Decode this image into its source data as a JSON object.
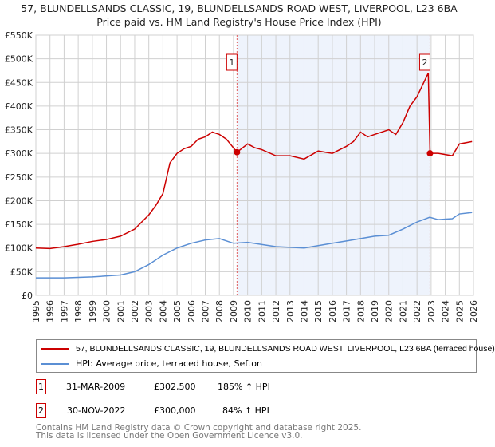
{
  "title": "57, BLUNDELLSANDS CLASSIC, 19, BLUNDELLSANDS ROAD WEST, LIVERPOOL, L23 6BA",
  "subtitle": "Price paid vs. HM Land Registry's House Price Index (HPI)",
  "chart_data": {
    "type": "line",
    "title": "57, BLUNDELLSANDS CLASSIC, 19, BLUNDELLSANDS ROAD WEST, LIVERPOOL, L23 6BA",
    "subtitle": "Price paid vs. HM Land Registry's House Price Index (HPI)",
    "xlim": [
      1995,
      2026
    ],
    "ylim": [
      0,
      550000
    ],
    "grid": true,
    "x_ticks": [
      "1995",
      "1996",
      "1997",
      "1998",
      "1999",
      "2000",
      "2001",
      "2002",
      "2003",
      "2004",
      "2005",
      "2006",
      "2007",
      "2008",
      "2009",
      "2010",
      "2011",
      "2012",
      "2013",
      "2014",
      "2015",
      "2016",
      "2017",
      "2018",
      "2019",
      "2020",
      "2021",
      "2022",
      "2023",
      "2024",
      "2025",
      "2026"
    ],
    "y_ticks": [
      {
        "v": 0,
        "l": "£0"
      },
      {
        "v": 50000,
        "l": "£50K"
      },
      {
        "v": 100000,
        "l": "£100K"
      },
      {
        "v": 150000,
        "l": "£150K"
      },
      {
        "v": 200000,
        "l": "£200K"
      },
      {
        "v": 250000,
        "l": "£250K"
      },
      {
        "v": 300000,
        "l": "£300K"
      },
      {
        "v": 350000,
        "l": "£350K"
      },
      {
        "v": 400000,
        "l": "£400K"
      },
      {
        "v": 450000,
        "l": "£450K"
      },
      {
        "v": 500000,
        "l": "£500K"
      },
      {
        "v": 550000,
        "l": "£550K"
      }
    ],
    "shaded_range": [
      2009.25,
      2022.92
    ],
    "series": [
      {
        "name": "57, BLUNDELLSANDS CLASSIC, 19, BLUNDELLSANDS ROAD WEST, LIVERPOOL, L23 6BA (terraced house)",
        "color": "#cc0000",
        "x": [
          1995,
          1996,
          1997,
          1998,
          1999,
          2000,
          2001,
          2002,
          2003,
          2003.5,
          2004,
          2004.5,
          2005,
          2005.5,
          2006,
          2006.5,
          2007,
          2007.5,
          2008,
          2008.5,
          2009.25,
          2010,
          2010.5,
          2011,
          2012,
          2013,
          2014,
          2015,
          2016,
          2017,
          2017.5,
          2018,
          2018.5,
          2019,
          2020,
          2020.5,
          2021,
          2021.5,
          2022,
          2022.8,
          2022.92,
          2023.5,
          2024.5,
          2025,
          2025.9
        ],
        "y": [
          100000,
          99000,
          103000,
          108000,
          114000,
          118000,
          125000,
          140000,
          170000,
          190000,
          215000,
          280000,
          300000,
          310000,
          315000,
          330000,
          335000,
          345000,
          340000,
          330000,
          302500,
          320000,
          312000,
          308000,
          295000,
          295000,
          288000,
          305000,
          300000,
          315000,
          325000,
          345000,
          335000,
          340000,
          350000,
          340000,
          365000,
          400000,
          420000,
          470000,
          300000,
          300000,
          295000,
          320000,
          325000
        ]
      },
      {
        "name": "HPI: Average price, terraced house, Sefton",
        "color": "#5b8fd4",
        "x": [
          1995,
          1997,
          1999,
          2001,
          2002,
          2003,
          2004,
          2005,
          2006,
          2007,
          2008,
          2009,
          2010,
          2012,
          2014,
          2015,
          2016,
          2017,
          2018,
          2019,
          2020,
          2021,
          2022,
          2022.9,
          2023.5,
          2024.5,
          2025,
          2025.9
        ],
        "y": [
          37000,
          37000,
          39000,
          43000,
          50000,
          65000,
          85000,
          100000,
          110000,
          117000,
          120000,
          110000,
          112000,
          103000,
          100000,
          105000,
          110000,
          115000,
          120000,
          125000,
          127000,
          140000,
          155000,
          165000,
          160000,
          162000,
          172000,
          175000
        ]
      }
    ],
    "annotations": [
      {
        "label": "1",
        "x": 2009.25,
        "y": 302500
      },
      {
        "label": "2",
        "x": 2022.92,
        "y": 300000
      }
    ]
  },
  "legend": {
    "items": [
      {
        "label": "57, BLUNDELLSANDS CLASSIC, 19, BLUNDELLSANDS ROAD WEST, LIVERPOOL, L23 6BA (terraced house)",
        "color": "#cc0000"
      },
      {
        "label": "HPI: Average price, terraced house, Sefton",
        "color": "#5b8fd4"
      }
    ]
  },
  "transactions": [
    {
      "num": "1",
      "date": "31-MAR-2009",
      "price": "£302,500",
      "hpi": "185% ↑ HPI"
    },
    {
      "num": "2",
      "date": "30-NOV-2022",
      "price": "£300,000",
      "hpi": "84% ↑ HPI"
    }
  ],
  "footer": {
    "line1": "Contains HM Land Registry data © Crown copyright and database right 2025.",
    "line2": "This data is licensed under the Open Government Licence v3.0."
  }
}
